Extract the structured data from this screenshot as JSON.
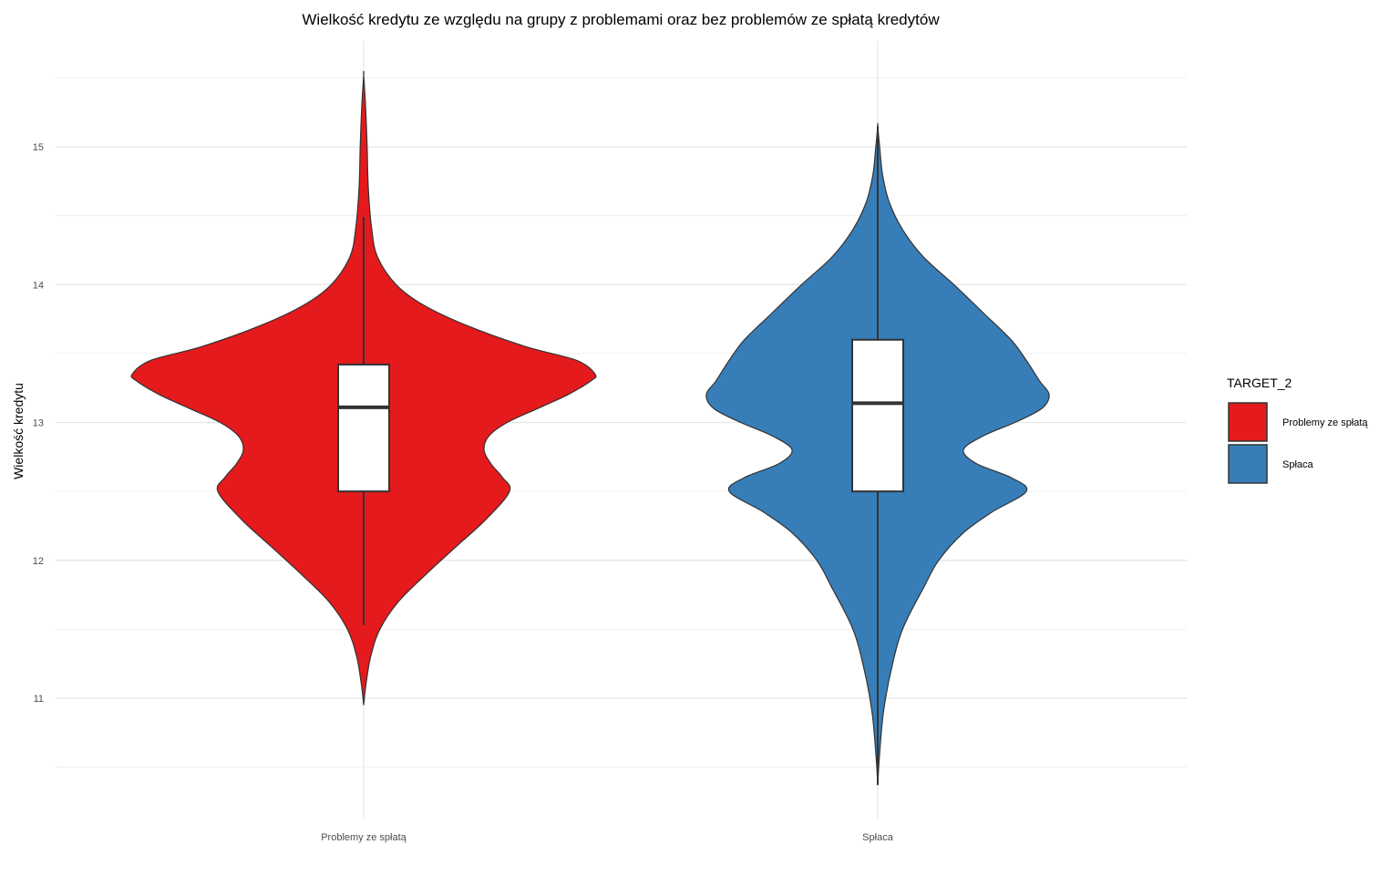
{
  "chart_data": {
    "type": "violin",
    "title": "Wielkość kredytu ze względu na grupy z problemami oraz bez problemów ze spłatą kredytów",
    "xlabel": "",
    "ylabel": "Wielkość kredytu",
    "ylim": [
      10.25,
      15.8
    ],
    "yticks": [
      11,
      12,
      13,
      14,
      15
    ],
    "grid": true,
    "categories": [
      "Problemy ze spłatą",
      "Spłaca"
    ],
    "legend": {
      "title": "TARGET_2",
      "position": "right",
      "entries": [
        {
          "label": "Problemy ze spłatą",
          "color": "#E41A1C"
        },
        {
          "label": "Spłaca",
          "color": "#377EB8"
        }
      ]
    },
    "series": [
      {
        "name": "Problemy ze spłatą",
        "color": "#E41A1C",
        "box": {
          "whisker_low": 11.53,
          "q1": 12.5,
          "median": 13.11,
          "q3": 13.42,
          "whisker_high": 14.49
        },
        "violin_range": [
          10.95,
          15.52
        ],
        "density_profile": [
          {
            "y": 10.95,
            "w": 0.0
          },
          {
            "y": 11.1,
            "w": 0.01
          },
          {
            "y": 11.3,
            "w": 0.03
          },
          {
            "y": 11.5,
            "w": 0.07
          },
          {
            "y": 11.7,
            "w": 0.15
          },
          {
            "y": 11.9,
            "w": 0.27
          },
          {
            "y": 12.1,
            "w": 0.4
          },
          {
            "y": 12.3,
            "w": 0.53
          },
          {
            "y": 12.5,
            "w": 0.63
          },
          {
            "y": 12.6,
            "w": 0.6
          },
          {
            "y": 12.7,
            "w": 0.55
          },
          {
            "y": 12.8,
            "w": 0.52
          },
          {
            "y": 12.9,
            "w": 0.54
          },
          {
            "y": 13.0,
            "w": 0.62
          },
          {
            "y": 13.1,
            "w": 0.75
          },
          {
            "y": 13.2,
            "w": 0.88
          },
          {
            "y": 13.3,
            "w": 0.98
          },
          {
            "y": 13.35,
            "w": 1.0
          },
          {
            "y": 13.45,
            "w": 0.92
          },
          {
            "y": 13.55,
            "w": 0.7
          },
          {
            "y": 13.7,
            "w": 0.45
          },
          {
            "y": 13.85,
            "w": 0.26
          },
          {
            "y": 14.0,
            "w": 0.14
          },
          {
            "y": 14.2,
            "w": 0.06
          },
          {
            "y": 14.4,
            "w": 0.035
          },
          {
            "y": 14.7,
            "w": 0.02
          },
          {
            "y": 15.0,
            "w": 0.015
          },
          {
            "y": 15.3,
            "w": 0.008
          },
          {
            "y": 15.52,
            "w": 0.0
          }
        ]
      },
      {
        "name": "Spłaca",
        "color": "#377EB8",
        "box": {
          "whisker_low": 10.37,
          "q1": 12.5,
          "median": 13.14,
          "q3": 13.6,
          "whisker_high": 15.15
        },
        "violin_range": [
          10.37,
          15.15
        ],
        "density_profile": [
          {
            "y": 10.37,
            "w": 0.0
          },
          {
            "y": 10.6,
            "w": 0.01
          },
          {
            "y": 10.9,
            "w": 0.03
          },
          {
            "y": 11.2,
            "w": 0.07
          },
          {
            "y": 11.5,
            "w": 0.13
          },
          {
            "y": 11.8,
            "w": 0.24
          },
          {
            "y": 12.0,
            "w": 0.32
          },
          {
            "y": 12.2,
            "w": 0.45
          },
          {
            "y": 12.35,
            "w": 0.6
          },
          {
            "y": 12.5,
            "w": 0.78
          },
          {
            "y": 12.6,
            "w": 0.7
          },
          {
            "y": 12.7,
            "w": 0.52
          },
          {
            "y": 12.8,
            "w": 0.45
          },
          {
            "y": 12.9,
            "w": 0.55
          },
          {
            "y": 13.0,
            "w": 0.72
          },
          {
            "y": 13.1,
            "w": 0.86
          },
          {
            "y": 13.2,
            "w": 0.9
          },
          {
            "y": 13.3,
            "w": 0.85
          },
          {
            "y": 13.45,
            "w": 0.78
          },
          {
            "y": 13.6,
            "w": 0.7
          },
          {
            "y": 13.8,
            "w": 0.55
          },
          {
            "y": 14.0,
            "w": 0.4
          },
          {
            "y": 14.2,
            "w": 0.24
          },
          {
            "y": 14.4,
            "w": 0.13
          },
          {
            "y": 14.6,
            "w": 0.06
          },
          {
            "y": 14.8,
            "w": 0.025
          },
          {
            "y": 15.0,
            "w": 0.01
          },
          {
            "y": 15.15,
            "w": 0.0
          }
        ]
      }
    ]
  }
}
